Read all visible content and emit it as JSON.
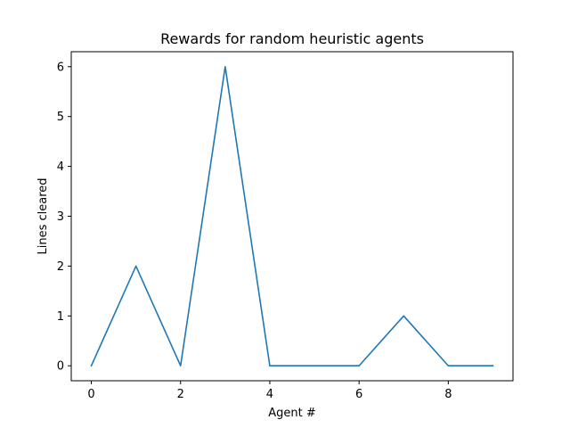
{
  "chart_data": {
    "type": "line",
    "title": "Rewards for random heuristic agents",
    "xlabel": "Agent #",
    "ylabel": "Lines cleared",
    "xlim": [
      -0.45,
      9.45
    ],
    "ylim": [
      -0.3,
      6.3
    ],
    "xticks": [
      0,
      2,
      4,
      6,
      8
    ],
    "yticks": [
      0,
      1,
      2,
      3,
      4,
      5,
      6
    ],
    "grid": false,
    "series": [
      {
        "color": "#1f77b4",
        "x": [
          0,
          1,
          2,
          3,
          4,
          5,
          6,
          7,
          8,
          9
        ],
        "values": [
          0,
          2,
          0,
          6,
          0,
          0,
          0,
          1,
          0,
          0
        ]
      }
    ]
  }
}
